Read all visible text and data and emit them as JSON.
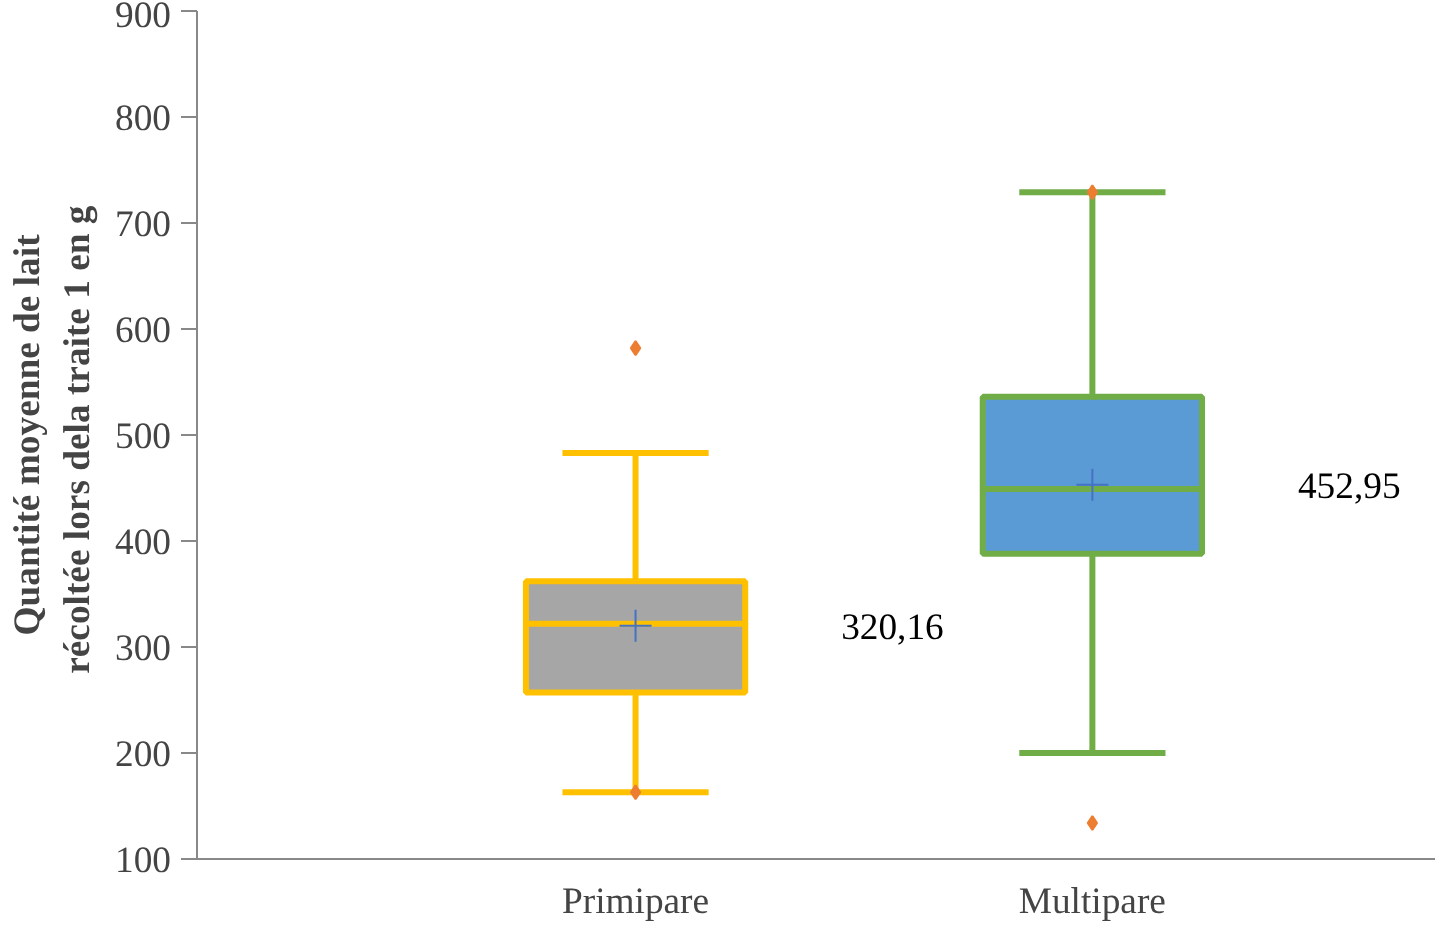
{
  "chart_data": {
    "type": "box",
    "ylabel": "Quantité moyenne de lait\nrécoltée  lors dela traite 1 en g",
    "categories": [
      "Primipare",
      "Multipare"
    ],
    "boxes": [
      {
        "low": 163,
        "q1": 257,
        "median": 322,
        "q3": 362,
        "high": 483,
        "mean": 320.16,
        "outliers": [
          582,
          163
        ]
      },
      {
        "low": 200,
        "q1": 388,
        "median": 449,
        "q3": 536,
        "high": 729,
        "mean": 452.95,
        "outliers": [
          729,
          134
        ]
      }
    ],
    "colors": [
      "#a6a6a6",
      "#5b9bd5"
    ],
    "annotations": [
      "320,16",
      "452,95"
    ],
    "ylim": [
      100,
      900
    ],
    "yticks": [
      100,
      200,
      300,
      400,
      500,
      600,
      700,
      800,
      900
    ],
    "grid": false
  }
}
